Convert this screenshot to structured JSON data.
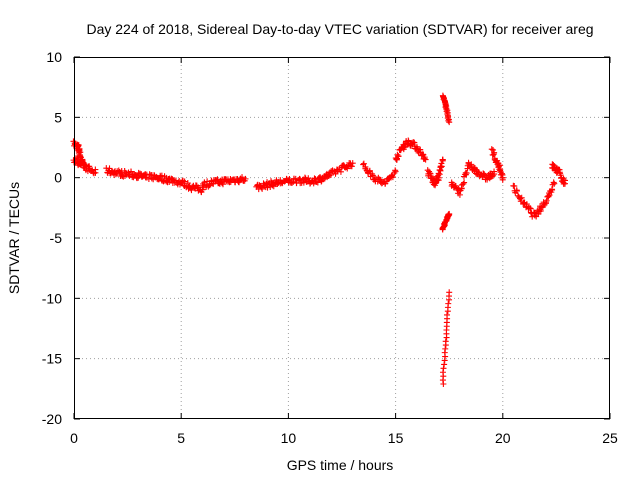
{
  "chart_data": {
    "type": "scatter",
    "title": "Day 224 of 2018, Sidereal Day-to-day VTEC variation (SDTVAR) for receiver areg",
    "xlabel": "GPS time / hours",
    "ylabel": "SDTVAR / TECUs",
    "xlim": [
      0,
      25
    ],
    "ylim": [
      -20,
      10
    ],
    "xticks": [
      0,
      5,
      10,
      15,
      20,
      25
    ],
    "yticks": [
      -20,
      -15,
      -10,
      -5,
      0,
      5,
      10
    ],
    "grid": true,
    "marker": "plus",
    "color": "#ff0000",
    "series": [
      {
        "name": "SDTVAR",
        "segments": [
          {
            "x": [
              0.0,
              0.2,
              0.3,
              0.5
            ],
            "y": [
              2.8,
              2.5,
              1.8,
              0.8
            ]
          },
          {
            "x": [
              0.0,
              0.3,
              0.6,
              1.0
            ],
            "y": [
              1.5,
              1.2,
              0.8,
              0.4
            ]
          },
          {
            "x": [
              1.5,
              2.0,
              2.5,
              3.0,
              3.4
            ],
            "y": [
              0.6,
              0.4,
              0.3,
              0.2,
              0.0
            ]
          },
          {
            "x": [
              3.5,
              4.0,
              4.5,
              5.0,
              5.5,
              6.0
            ],
            "y": [
              0.1,
              0.0,
              -0.2,
              -0.4,
              -0.8,
              -1.0
            ]
          },
          {
            "x": [
              6.0,
              6.5,
              7.0,
              7.5,
              8.0
            ],
            "y": [
              -0.6,
              -0.4,
              -0.3,
              -0.2,
              -0.1
            ]
          },
          {
            "x": [
              8.5,
              9.0,
              9.5,
              10.0,
              10.5,
              11.0
            ],
            "y": [
              -0.8,
              -0.6,
              -0.4,
              -0.3,
              -0.2,
              -0.3
            ]
          },
          {
            "x": [
              11.0,
              11.5,
              12.0,
              12.5,
              13.0
            ],
            "y": [
              -0.3,
              -0.1,
              0.3,
              0.8,
              1.2
            ]
          },
          {
            "x": [
              13.5,
              14.0,
              14.5,
              15.0
            ],
            "y": [
              1.0,
              0.0,
              -0.5,
              0.5
            ]
          },
          {
            "x": [
              15.0,
              15.3,
              15.6,
              16.0,
              16.4
            ],
            "y": [
              1.5,
              2.5,
              3.0,
              2.5,
              1.5
            ]
          },
          {
            "x": [
              16.5,
              16.8,
              17.0,
              17.2
            ],
            "y": [
              0.5,
              -0.5,
              0.0,
              1.5
            ]
          },
          {
            "x": [
              17.2,
              17.3,
              17.4,
              17.5
            ],
            "y": [
              6.8,
              6.2,
              5.5,
              4.6
            ]
          },
          {
            "x": [
              17.2,
              17.3,
              17.4,
              17.5
            ],
            "y": [
              -4.3,
              -3.8,
              -3.3,
              -3.0
            ]
          },
          {
            "x": [
              17.2,
              17.3,
              17.4,
              17.5
            ],
            "y": [
              -17.1,
              -14.5,
              -12.0,
              -9.5
            ]
          },
          {
            "x": [
              17.6,
              18.0,
              18.4,
              18.8,
              19.2,
              19.6
            ],
            "y": [
              -0.5,
              -1.2,
              1.0,
              0.5,
              0.0,
              0.3
            ]
          },
          {
            "x": [
              19.5,
              19.8,
              20.0
            ],
            "y": [
              2.2,
              1.0,
              0.0
            ]
          },
          {
            "x": [
              20.5,
              21.0,
              21.5,
              22.0,
              22.4
            ],
            "y": [
              -0.8,
              -2.2,
              -3.2,
              -2.0,
              -0.5
            ]
          },
          {
            "x": [
              22.3,
              22.6,
              22.9
            ],
            "y": [
              1.0,
              0.5,
              -0.5
            ]
          }
        ]
      }
    ]
  }
}
